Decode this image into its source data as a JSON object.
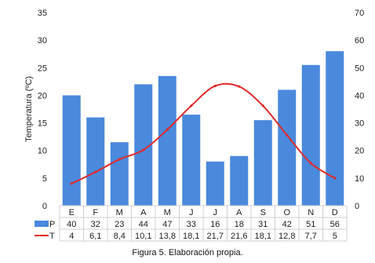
{
  "chart_data": {
    "type": "bar",
    "categories": [
      "E",
      "F",
      "M",
      "A",
      "M",
      "J",
      "J",
      "A",
      "S",
      "O",
      "N",
      "D"
    ],
    "series": [
      {
        "name": "P",
        "kind": "bar",
        "axis": "right",
        "values": [
          40,
          32,
          23,
          44,
          47,
          33,
          16,
          18,
          31,
          42,
          51,
          56
        ],
        "labels": [
          "40",
          "32",
          "23",
          "44",
          "47",
          "33",
          "16",
          "18",
          "31",
          "42",
          "51",
          "56"
        ]
      },
      {
        "name": "T",
        "kind": "line",
        "axis": "left",
        "values": [
          4,
          6.1,
          8.4,
          10.1,
          13.8,
          18.1,
          21.7,
          21.6,
          18.1,
          12.8,
          7.7,
          5
        ],
        "labels": [
          "4",
          "6,1",
          "8,4",
          "10,1",
          "13,8",
          "18,1",
          "21,7",
          "21,6",
          "18,1",
          "12,8",
          "7,7",
          "5"
        ]
      }
    ],
    "ylabel": "Temperatura (ºC)",
    "y2label": "Precipitaciones (mm)",
    "ylim": [
      0,
      35
    ],
    "y2lim": [
      0,
      70
    ],
    "yticks": [
      "0",
      "5",
      "10",
      "15",
      "20",
      "25",
      "30",
      "35"
    ],
    "y2ticks": [
      "0",
      "10",
      "20",
      "30",
      "40",
      "50",
      "60",
      "70"
    ],
    "grid": false,
    "legend": "data-table-bottom",
    "colors": {
      "bar": "#4a89dc",
      "line": "#e02a2a"
    }
  },
  "caption": "Figura 5. Elaboración propia."
}
